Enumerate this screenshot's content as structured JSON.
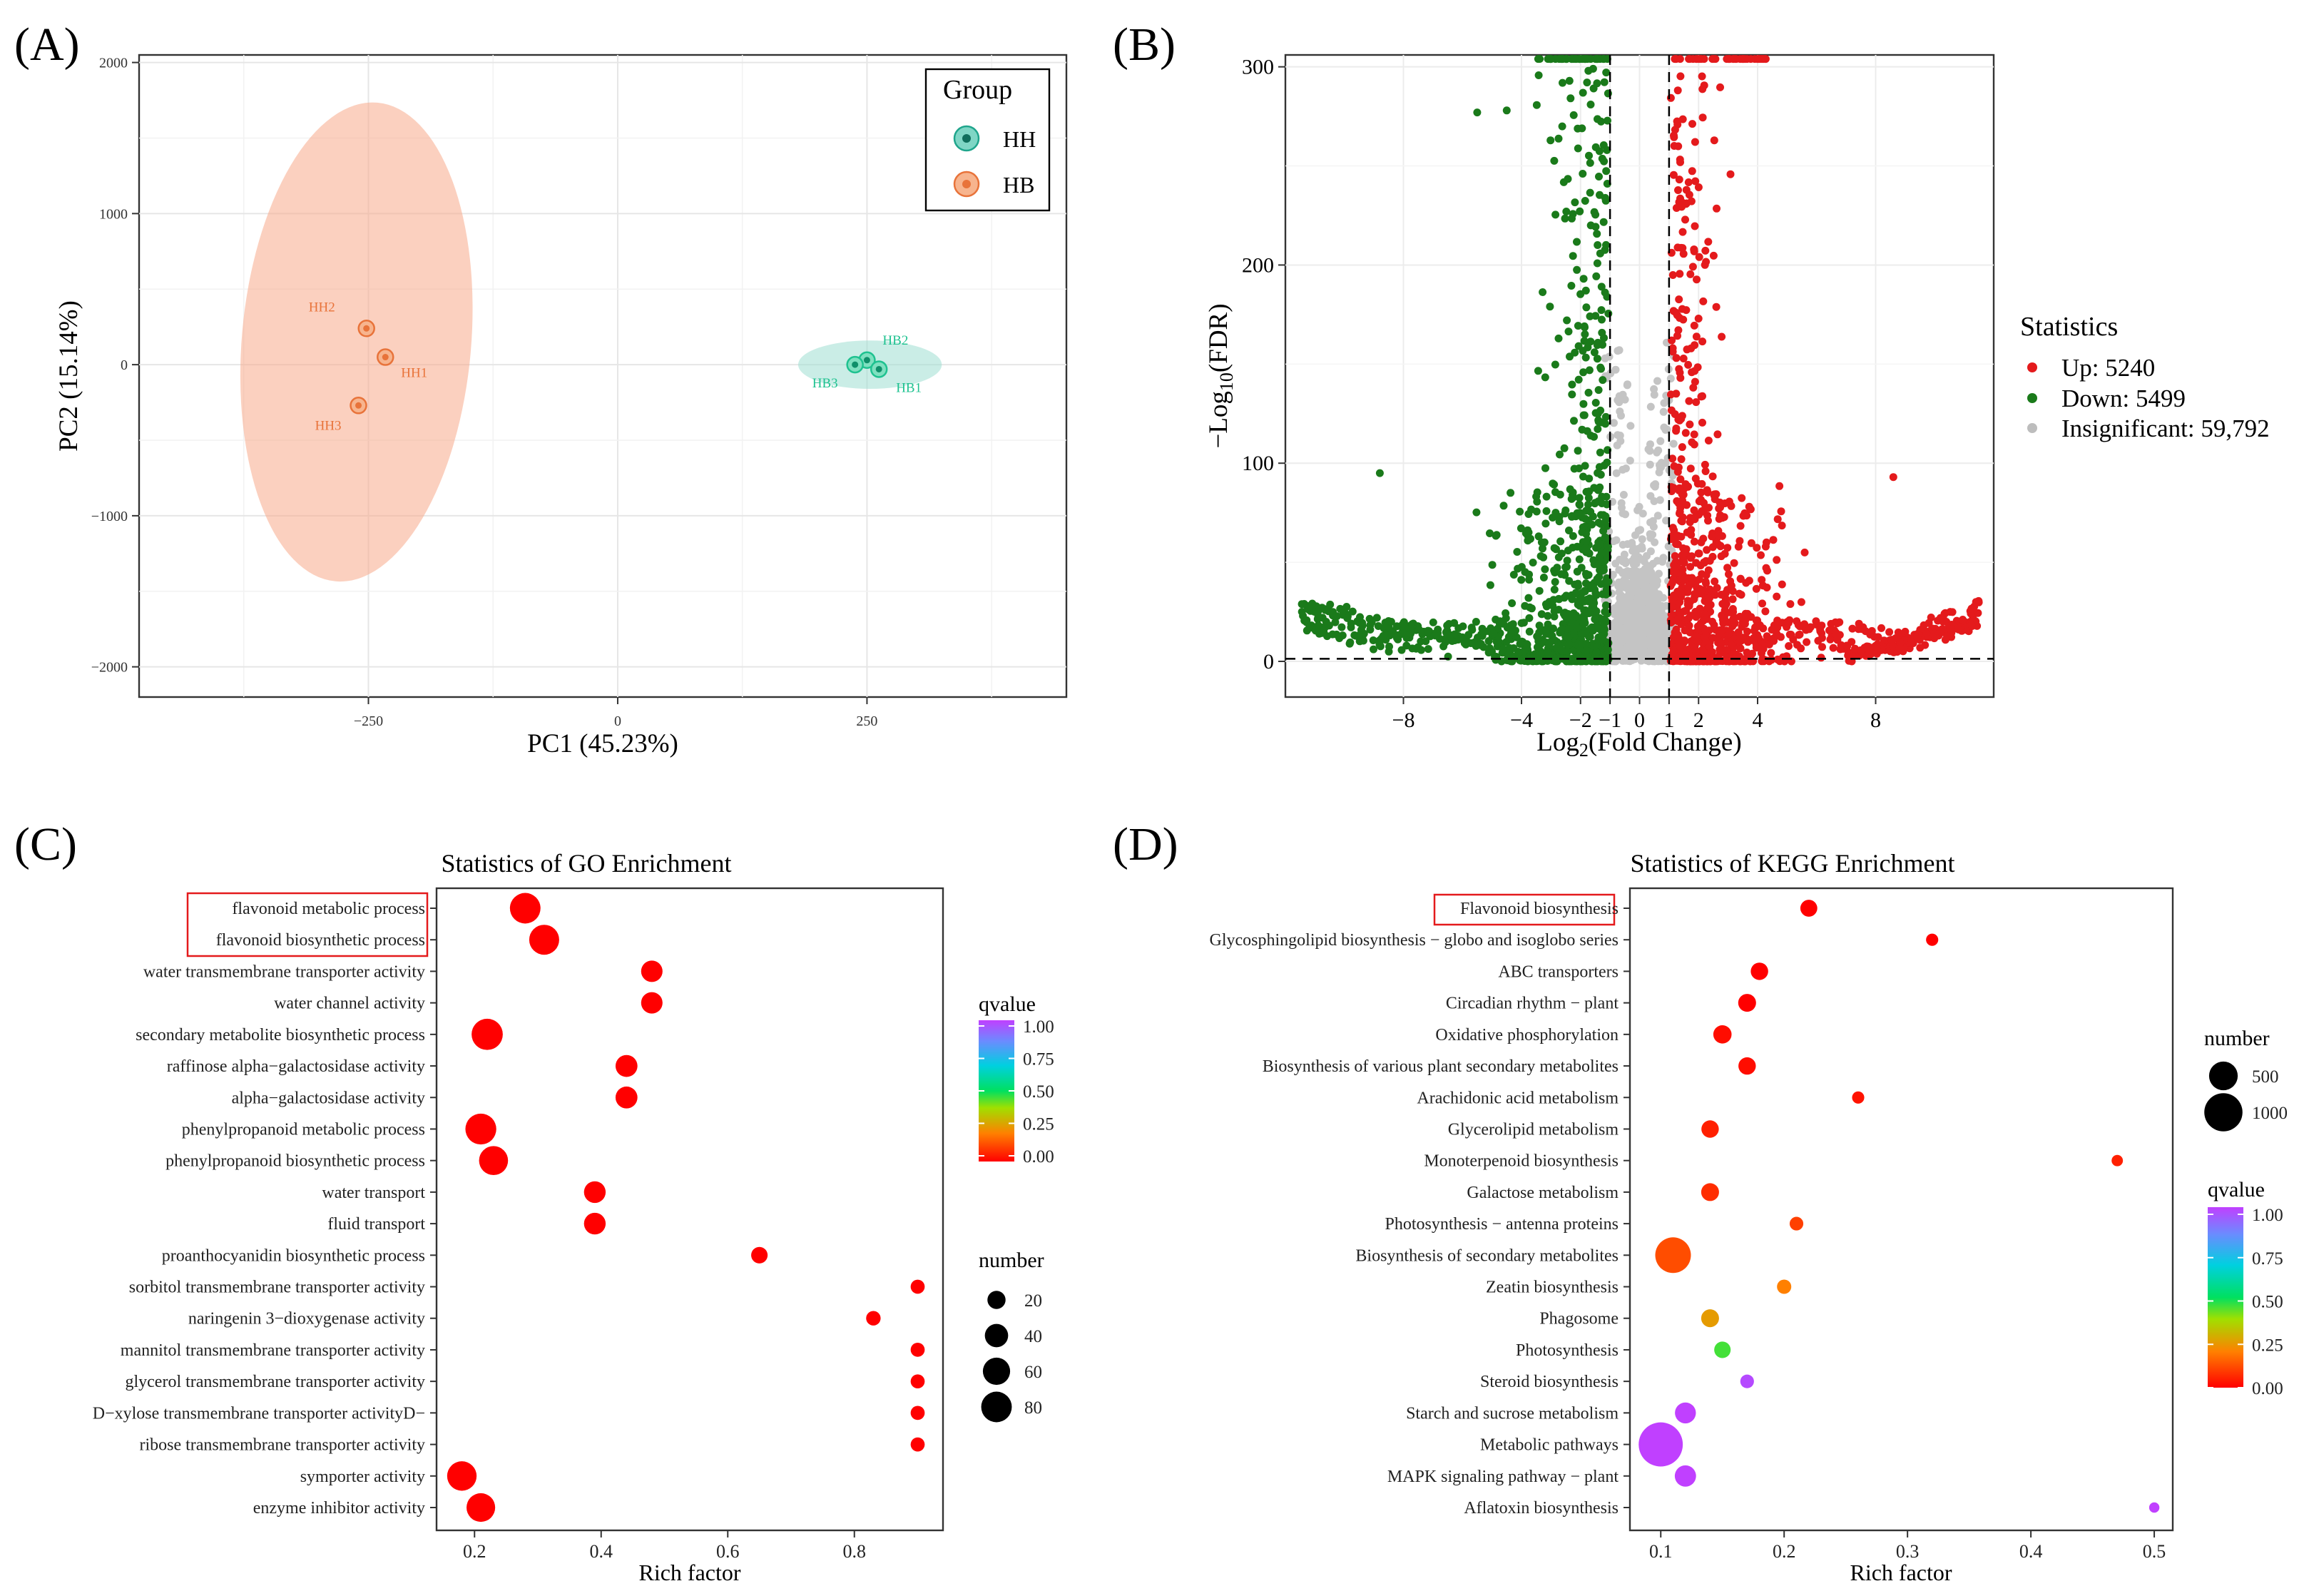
{
  "chart_data": [
    {
      "panel": "A",
      "type": "scatter",
      "panel_label": "(A)",
      "xlabel": "PC1 (45.23%)",
      "ylabel": "PC2 (15.14%)",
      "xlim": [
        -480,
        450
      ],
      "ylim": [
        -2200,
        2050
      ],
      "xticks": [
        -250,
        0,
        250
      ],
      "xtick_labels": [
        "−250",
        "0",
        "250"
      ],
      "yticks": [
        -2000,
        -1000,
        0,
        1000,
        2000
      ],
      "ytick_labels": [
        "−2000",
        "−1000",
        "0",
        "1000",
        "2000"
      ],
      "legend": {
        "title": "Group",
        "position": "top-right",
        "items": [
          {
            "label": "HH",
            "color": "#1fa58c",
            "fill": "#7fd6c5"
          },
          {
            "label": "HB",
            "color": "#e8733a",
            "fill": "#f7b48e"
          }
        ]
      },
      "ellipses": [
        {
          "group": "HB",
          "cx": -262,
          "cy": 150,
          "rx": 115,
          "ry": 1590,
          "angle_deg": 5,
          "color": "#f7a98a"
        },
        {
          "group": "HH",
          "cx": 253,
          "cy": 0,
          "rx": 72,
          "ry": 160,
          "angle_deg": 0,
          "color": "#9edfd1"
        }
      ],
      "points": [
        {
          "label": "HH2",
          "x": -252,
          "y": 240,
          "group": "HB",
          "color": "#e8733a"
        },
        {
          "label": "HH1",
          "x": -233,
          "y": 50,
          "group": "HB",
          "color": "#e8733a"
        },
        {
          "label": "HH3",
          "x": -260,
          "y": -270,
          "group": "HB",
          "color": "#e8733a"
        },
        {
          "label": "HB2",
          "x": 250,
          "y": 30,
          "group": "HH",
          "color": "#1fc290"
        },
        {
          "label": "HB3",
          "x": 238,
          "y": 0,
          "group": "HH",
          "color": "#1fc290"
        },
        {
          "label": "HB1",
          "x": 262,
          "y": -30,
          "group": "HH",
          "color": "#1fc290"
        }
      ]
    },
    {
      "panel": "B",
      "type": "scatter",
      "panel_label": "(B)",
      "xlabel_main": "Log",
      "xlabel_sub": "2",
      "xlabel_rest": "(Fold Change)",
      "ylabel_main": "−Log",
      "ylabel_sub": "10",
      "ylabel_rest": "(FDR)",
      "xlim": [
        -12,
        12
      ],
      "ylim": [
        -18,
        306
      ],
      "xticks": [
        -8,
        -4,
        -2,
        -1,
        0,
        1,
        2,
        4,
        8
      ],
      "xtick_labels": [
        "−8",
        "−4",
        "−2",
        "−1",
        "0",
        "1",
        "2",
        "4",
        "8"
      ],
      "yticks": [
        0,
        100,
        200,
        300
      ],
      "ytick_labels": [
        "0",
        "100",
        "200",
        "300"
      ],
      "thresholds": {
        "log2fc": [
          -1,
          1
        ],
        "neg_log10_fdr": 1.3
      },
      "legend": {
        "title": "Statistics",
        "position": "right",
        "items": [
          {
            "label": "Up: 5240",
            "color": "#e41a1c"
          },
          {
            "label": "Down: 5499",
            "color": "#1a7a1a"
          },
          {
            "label": "Insignificant: 59,792",
            "color": "#bdbdbd"
          }
        ]
      },
      "series": [
        {
          "name": "Up",
          "count": 5240,
          "color": "#e41a1c",
          "x_range": [
            1,
            11.5
          ],
          "y_range": [
            0,
            306
          ]
        },
        {
          "name": "Down",
          "count": 5499,
          "color": "#1a7a1a",
          "x_range": [
            -11.5,
            -1
          ],
          "y_range": [
            0,
            306
          ]
        },
        {
          "name": "Insignificant",
          "count": 59792,
          "color": "#bdbdbd",
          "x_range": [
            -1.5,
            1.5
          ],
          "y_range": [
            0,
            175
          ]
        }
      ]
    },
    {
      "panel": "C",
      "type": "scatter",
      "panel_label": "(C)",
      "title": "Statistics of GO Enrichment",
      "xlabel": "Rich factor",
      "xlim": [
        0.14,
        0.94
      ],
      "xticks": [
        0.2,
        0.4,
        0.6,
        0.8
      ],
      "xtick_labels": [
        "0.2",
        "0.4",
        "0.6",
        "0.8"
      ],
      "highlighted_terms": [
        "flavonoid metabolic process",
        "flavonoid biosynthetic process"
      ],
      "color_legend": {
        "title": "qvalue",
        "ticks": [
          "1.00",
          "0.75",
          "0.50",
          "0.25",
          "0.00"
        ]
      },
      "size_legend": {
        "title": "number",
        "values": [
          20,
          40,
          60,
          80
        ],
        "labels": [
          "20",
          "40",
          "60",
          "80"
        ]
      },
      "terms": [
        {
          "term": "flavonoid metabolic process",
          "rich_factor": 0.28,
          "number": 80,
          "qvalue": 0.0
        },
        {
          "term": "flavonoid biosynthetic process",
          "rich_factor": 0.31,
          "number": 76,
          "qvalue": 0.0
        },
        {
          "term": "water transmembrane transporter activity",
          "rich_factor": 0.48,
          "number": 32,
          "qvalue": 0.0
        },
        {
          "term": "water channel activity",
          "rich_factor": 0.48,
          "number": 32,
          "qvalue": 0.0
        },
        {
          "term": "secondary metabolite biosynthetic process",
          "rich_factor": 0.22,
          "number": 84,
          "qvalue": 0.0
        },
        {
          "term": "raffinose alpha−galactosidase activity",
          "rich_factor": 0.44,
          "number": 34,
          "qvalue": 0.0
        },
        {
          "term": "alpha−galactosidase activity",
          "rich_factor": 0.44,
          "number": 34,
          "qvalue": 0.0
        },
        {
          "term": "phenylpropanoid metabolic process",
          "rich_factor": 0.21,
          "number": 82,
          "qvalue": 0.0
        },
        {
          "term": "phenylpropanoid biosynthetic process",
          "rich_factor": 0.23,
          "number": 70,
          "qvalue": 0.0
        },
        {
          "term": "water transport",
          "rich_factor": 0.39,
          "number": 33,
          "qvalue": 0.0
        },
        {
          "term": "fluid transport",
          "rich_factor": 0.39,
          "number": 33,
          "qvalue": 0.0
        },
        {
          "term": "proanthocyanidin biosynthetic process",
          "rich_factor": 0.65,
          "number": 15,
          "qvalue": 0.0
        },
        {
          "term": "sorbitol transmembrane transporter activity",
          "rich_factor": 0.9,
          "number": 9,
          "qvalue": 0.0
        },
        {
          "term": "naringenin 3−dioxygenase activity",
          "rich_factor": 0.83,
          "number": 10,
          "qvalue": 0.0
        },
        {
          "term": "mannitol transmembrane transporter activity",
          "rich_factor": 0.9,
          "number": 9,
          "qvalue": 0.0
        },
        {
          "term": "glycerol transmembrane transporter activity",
          "rich_factor": 0.9,
          "number": 9,
          "qvalue": 0.0
        },
        {
          "term": "D−xylose transmembrane transporter activityD−",
          "rich_factor": 0.9,
          "number": 9,
          "qvalue": 0.0
        },
        {
          "term": "ribose transmembrane transporter activity",
          "rich_factor": 0.9,
          "number": 9,
          "qvalue": 0.0
        },
        {
          "term": "symporter activity",
          "rich_factor": 0.18,
          "number": 73,
          "qvalue": 0.0
        },
        {
          "term": "enzyme inhibitor activity",
          "rich_factor": 0.21,
          "number": 68,
          "qvalue": 0.0
        }
      ]
    },
    {
      "panel": "D",
      "type": "scatter",
      "panel_label": "(D)",
      "title": "Statistics of KEGG Enrichment",
      "xlabel": "Rich factor",
      "xlim": [
        0.075,
        0.515
      ],
      "xticks": [
        0.1,
        0.2,
        0.3,
        0.4,
        0.5
      ],
      "xtick_labels": [
        "0.1",
        "0.2",
        "0.3",
        "0.4",
        "0.5"
      ],
      "highlighted_terms": [
        "Flavonoid biosynthesis"
      ],
      "color_legend": {
        "title": "qvalue",
        "ticks": [
          "1.00",
          "0.75",
          "0.50",
          "0.25",
          "0.00"
        ]
      },
      "size_legend": {
        "title": "number",
        "values": [
          500,
          1000
        ],
        "labels": [
          "500",
          "1000"
        ]
      },
      "terms": [
        {
          "term": "Flavonoid biosynthesis",
          "rich_factor": 0.22,
          "number": 120,
          "qvalue": 0.0
        },
        {
          "term": "Glycosphingolipid biosynthesis − globo and isoglobo series",
          "rich_factor": 0.32,
          "number": 40,
          "qvalue": 0.0
        },
        {
          "term": "ABC transporters",
          "rich_factor": 0.18,
          "number": 130,
          "qvalue": 0.0
        },
        {
          "term": "Circadian rhythm − plant",
          "rich_factor": 0.17,
          "number": 140,
          "qvalue": 0.0
        },
        {
          "term": "Oxidative phosphorylation",
          "rich_factor": 0.15,
          "number": 150,
          "qvalue": 0.02
        },
        {
          "term": "Biosynthesis of various plant secondary metabolites",
          "rich_factor": 0.17,
          "number": 130,
          "qvalue": 0.02
        },
        {
          "term": "Arachidonic acid metabolism",
          "rich_factor": 0.26,
          "number": 40,
          "qvalue": 0.03
        },
        {
          "term": "Glycerolipid metabolism",
          "rich_factor": 0.14,
          "number": 130,
          "qvalue": 0.05
        },
        {
          "term": "Monoterpenoid biosynthesis",
          "rich_factor": 0.47,
          "number": 30,
          "qvalue": 0.05
        },
        {
          "term": "Galactose metabolism",
          "rich_factor": 0.14,
          "number": 140,
          "qvalue": 0.07
        },
        {
          "term": "Photosynthesis − antenna proteins",
          "rich_factor": 0.21,
          "number": 60,
          "qvalue": 0.1
        },
        {
          "term": "Biosynthesis of secondary metabolites",
          "rich_factor": 0.11,
          "number": 850,
          "qvalue": 0.12
        },
        {
          "term": "Zeatin biosynthesis",
          "rich_factor": 0.2,
          "number": 70,
          "qvalue": 0.2
        },
        {
          "term": "Phagosome",
          "rich_factor": 0.14,
          "number": 140,
          "qvalue": 0.25
        },
        {
          "term": "Photosynthesis",
          "rich_factor": 0.15,
          "number": 110,
          "qvalue": 0.45
        },
        {
          "term": "Steroid biosynthesis",
          "rich_factor": 0.17,
          "number": 60,
          "qvalue": 0.98
        },
        {
          "term": "Starch and sucrose metabolism",
          "rich_factor": 0.12,
          "number": 220,
          "qvalue": 1.0
        },
        {
          "term": "Metabolic pathways",
          "rich_factor": 0.1,
          "number": 1400,
          "qvalue": 1.0
        },
        {
          "term": "MAPK signaling pathway − plant",
          "rich_factor": 0.12,
          "number": 230,
          "qvalue": 1.0
        },
        {
          "term": "Aflatoxin biosynthesis",
          "rich_factor": 0.5,
          "number": 20,
          "qvalue": 1.0
        }
      ]
    }
  ]
}
